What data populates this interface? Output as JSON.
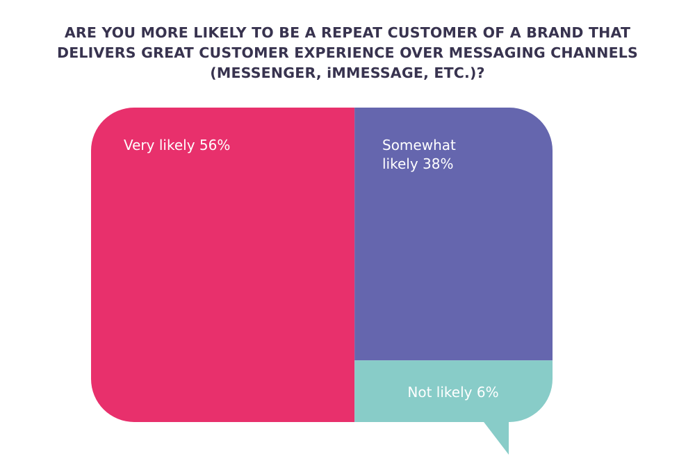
{
  "chart_data": {
    "type": "treemap",
    "title_lines": [
      "ARE YOU MORE LIKELY TO BE A REPEAT CUSTOMER OF A BRAND THAT",
      "DELIVERS GREAT CUSTOMER EXPERIENCE OVER MESSAGING CHANNELS",
      "(MESSENGER, iMMESSAGE, ETC.)?"
    ],
    "categories": [
      "Very likely",
      "Somewhat likely",
      "Not likely"
    ],
    "values": [
      56,
      38,
      6
    ],
    "unit": "%",
    "labels": [
      [
        "Very likely 56%"
      ],
      [
        "Somewhat",
        "likely 38%"
      ],
      [
        "Not likely 6%"
      ]
    ],
    "colors": [
      "#E8306C",
      "#6566AE",
      "#88CCC8"
    ],
    "title_color": "#38334F"
  }
}
